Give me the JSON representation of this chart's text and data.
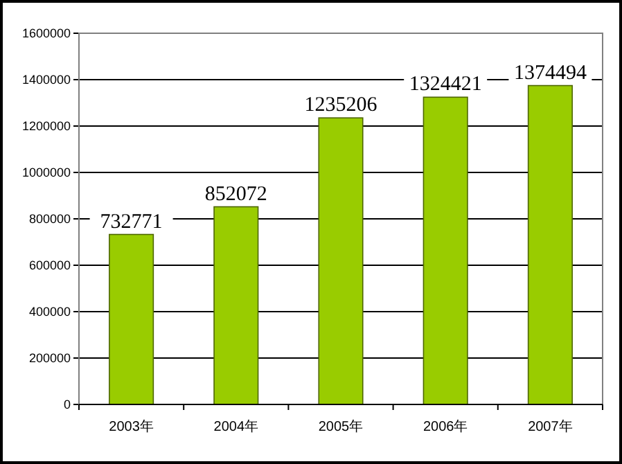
{
  "chart_data": {
    "type": "bar",
    "categories": [
      "2003年",
      "2004年",
      "2005年",
      "2006年",
      "2007年"
    ],
    "values": [
      732771,
      852072,
      1235206,
      1324421,
      1374494
    ],
    "color": "#99cc00",
    "ylim": [
      0,
      1600000
    ],
    "yticks": [
      0,
      200000,
      400000,
      600000,
      800000,
      1000000,
      1200000,
      1400000,
      1600000
    ],
    "grid": "y",
    "data_labels": true
  }
}
